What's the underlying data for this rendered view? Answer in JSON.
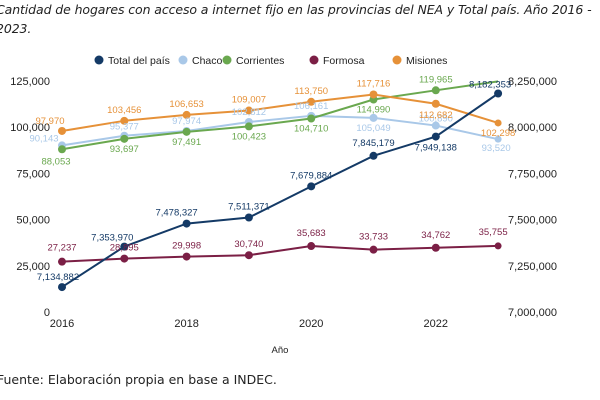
{
  "title": "Cantidad de hogares con acceso a internet fijo en las provincias del NEA y Total país. Año 2016 - 2023.",
  "source": "Fuente: Elaboración propia en base a INDEC.",
  "chart_data": {
    "type": "line",
    "title": "Cantidad de hogares con acceso a internet fijo en las provincias del NEA y Total país. Año 2016 - 2023.",
    "xlabel": "Año",
    "ylabel_left": "",
    "ylabel_right": "",
    "x": [
      2016,
      2017,
      2018,
      2019,
      2020,
      2021,
      2022,
      2023
    ],
    "x_tick_labels": [
      "2016",
      "2018",
      "2020",
      "2022"
    ],
    "x_ticks": [
      2016,
      2018,
      2020,
      2022
    ],
    "ylim_left": [
      0,
      125000
    ],
    "y_ticks_left": [
      "0",
      "25,000",
      "50,000",
      "75,000",
      "100,000",
      "125,000"
    ],
    "ylim_right": [
      7000000,
      8250000
    ],
    "y_ticks_right": [
      "7,000,000",
      "7,250,000",
      "7,500,000",
      "7,750,000",
      "8,000,000",
      "8,250,000"
    ],
    "grid": false,
    "legend_position": "top",
    "series": [
      {
        "name": "Total del país",
        "axis": "right",
        "color": "#143a66",
        "values": [
          7134882,
          7353970,
          7478327,
          7511371,
          7679884,
          7845179,
          7949138,
          8182353
        ],
        "labels": [
          "7,134,882",
          "7,353,970",
          "7,478,327",
          "7,511,371",
          "7,679,884",
          "7,845,179",
          "7,949,138",
          "8,182,353"
        ]
      },
      {
        "name": "Chaco",
        "axis": "left",
        "color": "#a9c8e8",
        "values": [
          90143,
          95377,
          97974,
          102812,
          106161,
          105049,
          100890,
          93520
        ],
        "labels": [
          "90,143",
          "95,377",
          "97,974",
          "102,812",
          "106,161",
          "105,049",
          "100,890",
          "93,520"
        ]
      },
      {
        "name": "Corrientes",
        "axis": "left",
        "color": "#6aa84f",
        "values": [
          88053,
          93697,
          97491,
          100423,
          104710,
          114990,
          119965,
          124800
        ],
        "labels": [
          "88,053",
          "93,697",
          "97,491",
          "100,423",
          "104,710",
          "114,990",
          "119,965",
          ""
        ]
      },
      {
        "name": "Formosa",
        "axis": "left",
        "color": "#7b1f45",
        "values": [
          27237,
          28895,
          29998,
          30740,
          35683,
          33733,
          34762,
          35755
        ],
        "labels": [
          "27,237",
          "28,895",
          "29,998",
          "30,740",
          "35,683",
          "33,733",
          "34,762",
          "35,755"
        ]
      },
      {
        "name": "Misiones",
        "axis": "left",
        "color": "#e69138",
        "values": [
          97970,
          103456,
          106653,
          109007,
          113750,
          117716,
          112682,
          102298
        ],
        "labels": [
          "97,970",
          "103,456",
          "106,653",
          "109,007",
          "113,750",
          "117,716",
          "112,682",
          "102,298"
        ]
      }
    ]
  }
}
